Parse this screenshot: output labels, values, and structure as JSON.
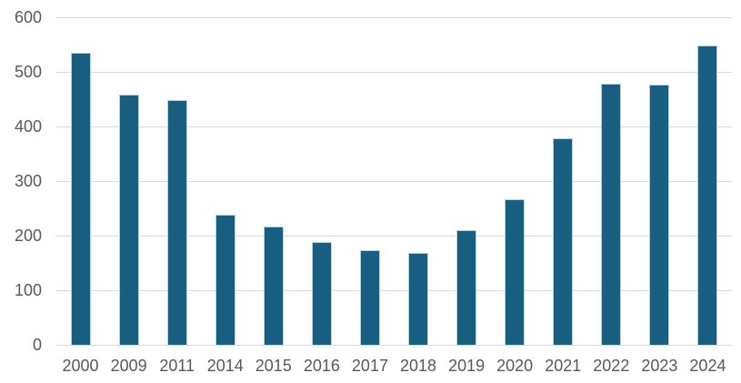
{
  "chart_data": {
    "type": "bar",
    "title": "",
    "xlabel": "",
    "ylabel": "",
    "categories": [
      "2000",
      "2009",
      "2011",
      "2014",
      "2015",
      "2016",
      "2017",
      "2018",
      "2019",
      "2020",
      "2021",
      "2022",
      "2023",
      "2024"
    ],
    "values": [
      535,
      458,
      449,
      238,
      217,
      188,
      174,
      168,
      210,
      267,
      379,
      478,
      476,
      549
    ],
    "ylim": [
      0,
      600
    ],
    "y_ticks": [
      0,
      100,
      200,
      300,
      400,
      500,
      600
    ],
    "grid": "horizontal",
    "legend_position": "none",
    "colors": {
      "bar_fill": "#175e80",
      "bar_edge": "#b9d2de",
      "gridline": "#d9d9d9",
      "tick_label": "#595959",
      "background": "#ffffff"
    }
  }
}
